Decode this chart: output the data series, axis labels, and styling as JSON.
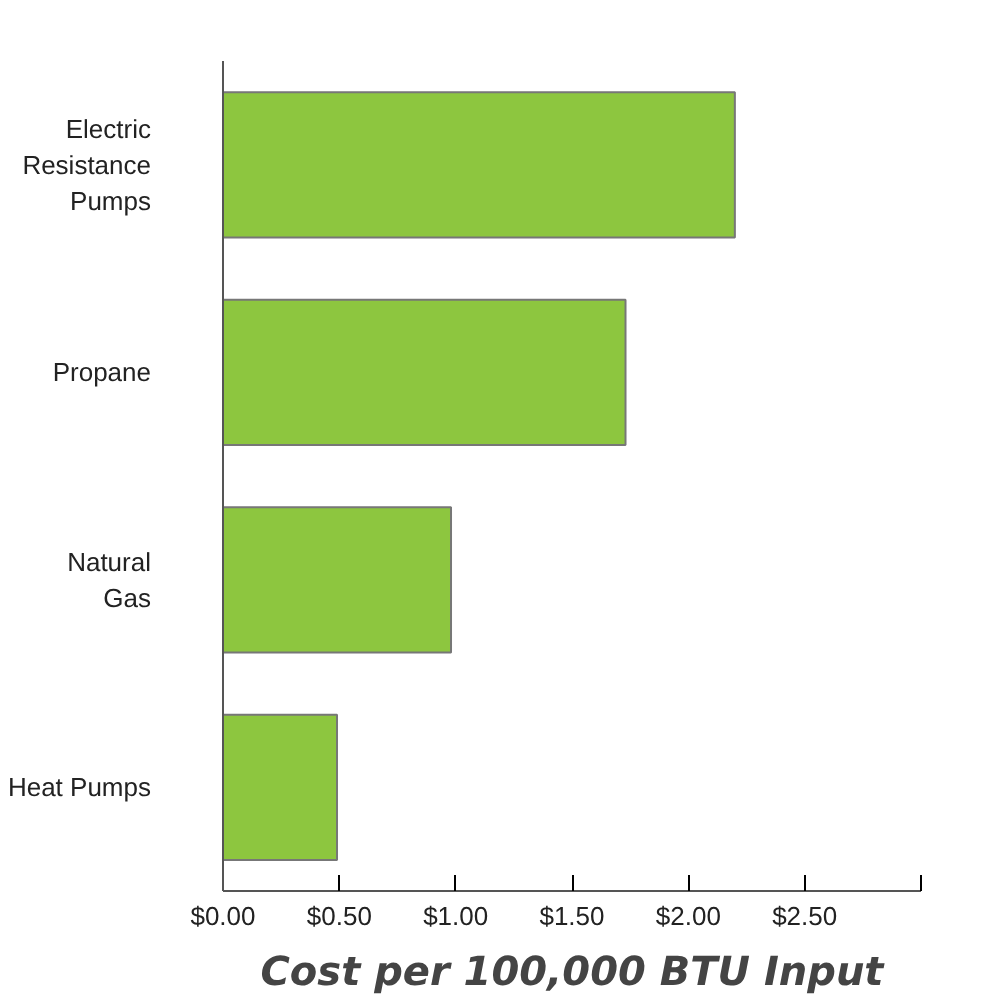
{
  "chart_data": {
    "type": "bar",
    "orientation": "horizontal",
    "xlabel": "Cost per 100,000 BTU Input",
    "categories": [
      "Electric Resistance Pumps",
      "Propane",
      "Natural Gas",
      "Heat Pumps"
    ],
    "values": [
      2.2,
      1.73,
      0.98,
      0.49
    ],
    "color": "#8dc63f",
    "xlim": [
      0,
      3
    ],
    "xticks": [
      {
        "value": 0,
        "label": "$0.00"
      },
      {
        "value": 0.5,
        "label": "$0.50"
      },
      {
        "value": 1,
        "label": "$1.00"
      },
      {
        "value": 1.5,
        "label": "$1.50"
      },
      {
        "value": 2,
        "label": "$2.00"
      },
      {
        "value": 2.5,
        "label": "$2.50"
      },
      {
        "value": 3,
        "label": null
      }
    ],
    "grid": false
  }
}
